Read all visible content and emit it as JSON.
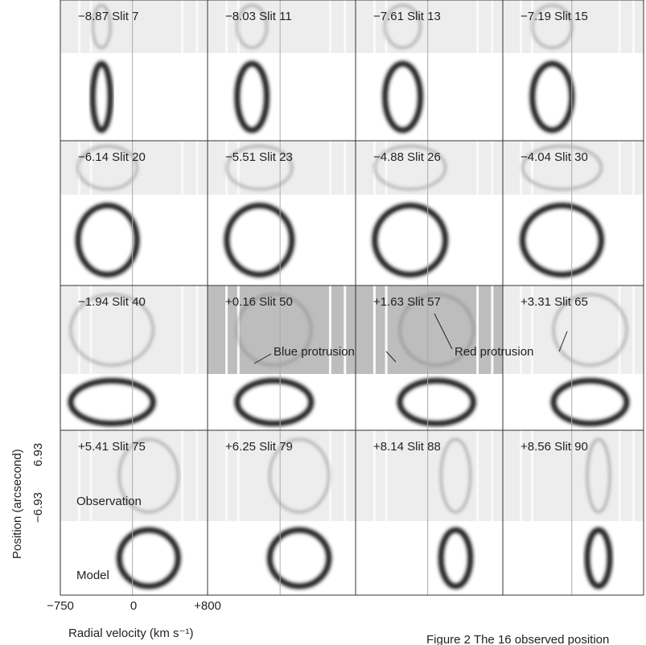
{
  "figure": {
    "panels": [
      {
        "label": "−8.87  Slit 7"
      },
      {
        "label": "−8.03  Slit 11"
      },
      {
        "label": "−7.61 Slit 13"
      },
      {
        "label": "−7.19 Slit 15"
      },
      {
        "label": "−6.14 Slit 20"
      },
      {
        "label": "−5.51 Slit 23"
      },
      {
        "label": "−4.88 Slit 26"
      },
      {
        "label": "−4.04 Slit 30"
      },
      {
        "label": "−1.94 Slit 40"
      },
      {
        "label": "+0.16 Slit 50"
      },
      {
        "label": "+1.63 Slit 57"
      },
      {
        "label": "+3.31 Slit 65"
      },
      {
        "label": "+5.41 Slit 75"
      },
      {
        "label": "+6.25 Slit 79"
      },
      {
        "label": "+8.14 Slit 88"
      },
      {
        "label": "+8.56 Slit 90"
      }
    ],
    "annotations": {
      "blue": "Blue protrusion",
      "red": "Red protrusion",
      "observation": "Observation",
      "model": "Model"
    },
    "x_axis": {
      "ticks": [
        "−750",
        "0",
        "+800"
      ],
      "label": "Radial velocity (km s⁻¹)"
    },
    "y_axis": {
      "ticks": [
        "6.93",
        "−6.93"
      ],
      "label": "Position (arcsecond)"
    },
    "caption": "Figure 2  The 16 observed position"
  }
}
